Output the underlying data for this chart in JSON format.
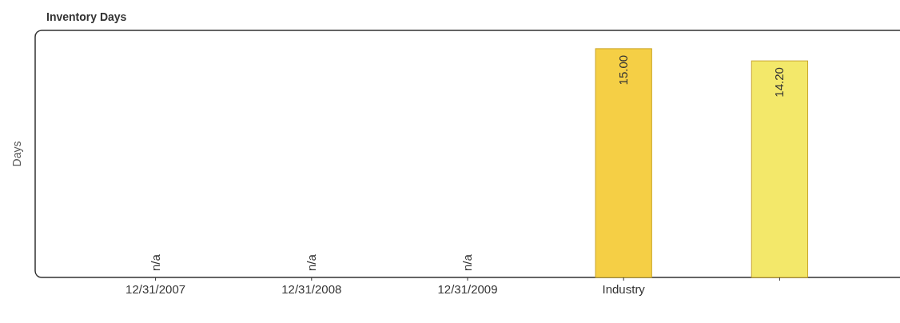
{
  "chart_data": {
    "type": "bar",
    "title": "Inventory Days",
    "ylabel": "Days",
    "categories": [
      "12/31/2007",
      "12/31/2008",
      "12/31/2009",
      "Industry",
      null
    ],
    "values": [
      null,
      null,
      null,
      15.0,
      14.2
    ],
    "colors": [
      null,
      null,
      null,
      "#f5cf45",
      "#f3e86a"
    ],
    "value_labels": [
      "n/a",
      "n/a",
      "n/a",
      "15.00",
      "14.20"
    ]
  }
}
